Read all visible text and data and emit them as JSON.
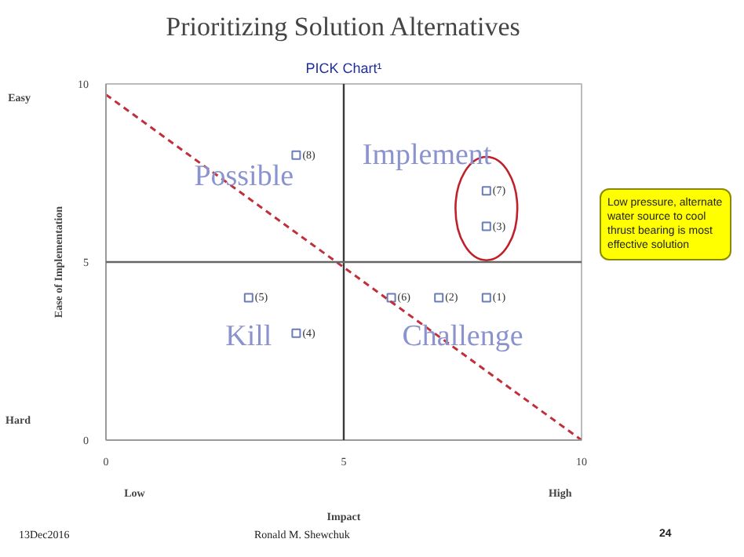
{
  "chart_data": {
    "type": "scatter",
    "title": "Prioritizing Solution Alternatives",
    "subtitle": "PICK Chart¹",
    "xlabel": "Impact",
    "ylabel": "Ease of Implementation",
    "xlim": [
      0,
      10
    ],
    "ylim": [
      0,
      10
    ],
    "xticks": [
      0,
      5,
      10
    ],
    "yticks": [
      0,
      5,
      10
    ],
    "grid": false,
    "series": [
      {
        "type": "scatter",
        "name": "(8)",
        "marker": "square",
        "color": "#6a7db8",
        "x": [
          4
        ],
        "values": [
          8
        ]
      },
      {
        "type": "scatter",
        "name": "(5)",
        "marker": "square",
        "color": "#6a7db8",
        "x": [
          3
        ],
        "values": [
          4
        ]
      },
      {
        "type": "scatter",
        "name": "(4)",
        "marker": "square",
        "color": "#6a7db8",
        "x": [
          4
        ],
        "values": [
          3
        ]
      },
      {
        "type": "scatter",
        "name": "(6)",
        "marker": "square",
        "color": "#6a7db8",
        "x": [
          6
        ],
        "values": [
          4
        ]
      },
      {
        "type": "scatter",
        "name": "(2)",
        "marker": "square",
        "color": "#6a7db8",
        "x": [
          7
        ],
        "values": [
          4
        ]
      },
      {
        "type": "scatter",
        "name": "(1)",
        "marker": "square",
        "color": "#6a7db8",
        "x": [
          8
        ],
        "values": [
          4
        ]
      },
      {
        "type": "scatter",
        "name": "(7)",
        "marker": "square",
        "color": "#6a7db8",
        "x": [
          8
        ],
        "values": [
          7
        ]
      },
      {
        "type": "scatter",
        "name": "(3)",
        "marker": "square",
        "color": "#6a7db8",
        "x": [
          8
        ],
        "values": [
          6
        ]
      },
      {
        "type": "line",
        "color": "#c0303a",
        "line_style": "dashed",
        "x": [
          0,
          10
        ],
        "values": [
          9.7,
          0
        ]
      }
    ],
    "ref_lines": [
      {
        "axis": "x",
        "value": 5,
        "label": null,
        "color": "#3a3a3a"
      },
      {
        "axis": "y",
        "value": 5,
        "label": null,
        "color": "#666666"
      }
    ],
    "annotations": [
      "Possible",
      "Implement",
      "Kill",
      "Challenge",
      "Low pressure, alternate water source to cool thrust bearing is most effective solution",
      "Easy",
      "Hard",
      "Low",
      "High",
      "13Dec2016",
      "Ronald M. Shewchuk",
      "24"
    ]
  }
}
